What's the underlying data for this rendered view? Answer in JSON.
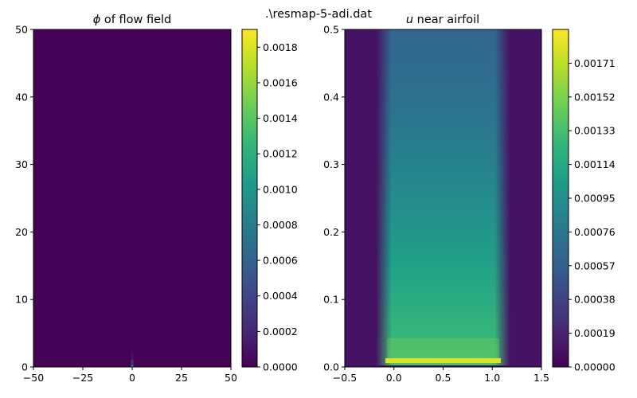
{
  "suptitle": ".\\resmap-5-adi.dat",
  "colormap": "viridis",
  "colormap_stops": [
    "#440154",
    "#482878",
    "#3e4989",
    "#31688e",
    "#26828e",
    "#1f9e89",
    "#35b779",
    "#6ece58",
    "#b5de2b",
    "#fde725"
  ],
  "chart_data": [
    {
      "type": "heatmap",
      "title_symbol": "ϕ",
      "title_text": " of flow field",
      "xlim": [
        -50,
        50
      ],
      "ylim": [
        0,
        50
      ],
      "x_ticks": [
        "−50",
        "−25",
        "0",
        "25",
        "50"
      ],
      "x_tick_values": [
        -50,
        -25,
        0,
        25,
        50
      ],
      "y_ticks": [
        "0",
        "10",
        "20",
        "30",
        "40",
        "50"
      ],
      "y_tick_values": [
        0,
        10,
        20,
        30,
        40,
        50
      ],
      "color_range": [
        0,
        0.0019
      ],
      "colorbar_ticks": [
        "0.0000",
        "0.0002",
        "0.0004",
        "0.0006",
        "0.0008",
        "0.0010",
        "0.0012",
        "0.0014",
        "0.0016",
        "0.0018"
      ],
      "colorbar_tick_values": [
        0,
        0.0002,
        0.0004,
        0.0006,
        0.0008,
        0.001,
        0.0012,
        0.0014,
        0.0016,
        0.0018
      ],
      "background_value": 1e-05,
      "features": [
        {
          "x": [
            -0.6,
            0.6
          ],
          "y": [
            0,
            1.0
          ],
          "value": 0.0009
        },
        {
          "x": [
            -0.4,
            0.4
          ],
          "y": [
            0,
            0.4
          ],
          "value": 0.0011
        }
      ]
    },
    {
      "type": "heatmap",
      "title_symbol": "u",
      "title_text": " near airfoil",
      "xlim": [
        -0.5,
        1.5
      ],
      "ylim": [
        0,
        0.5
      ],
      "x_ticks": [
        "−0.5",
        "0.0",
        "0.5",
        "1.0",
        "1.5"
      ],
      "x_tick_values": [
        -0.5,
        0,
        0.5,
        1.0,
        1.5
      ],
      "y_ticks": [
        "0.0",
        "0.1",
        "0.2",
        "0.3",
        "0.4",
        "0.5"
      ],
      "y_tick_values": [
        0,
        0.1,
        0.2,
        0.3,
        0.4,
        0.5
      ],
      "color_range": [
        0,
        0.0019
      ],
      "colorbar_ticks": [
        "0.00000",
        "0.00019",
        "0.00038",
        "0.00057",
        "0.00076",
        "0.00095",
        "0.00114",
        "0.00133",
        "0.00152",
        "0.00171"
      ],
      "colorbar_tick_values": [
        0,
        0.00019,
        0.00038,
        0.00057,
        0.00076,
        0.00095,
        0.00114,
        0.00133,
        0.00152,
        0.00171
      ],
      "profile_description_values": {
        "outside_value": 9e-05,
        "band_x": [
          -0.07,
          1.07
        ],
        "value_at_top": 0.00062,
        "value_at_bottom": 0.00135,
        "surface_peak_value": 0.0018,
        "surface_y": 0.007
      }
    }
  ]
}
